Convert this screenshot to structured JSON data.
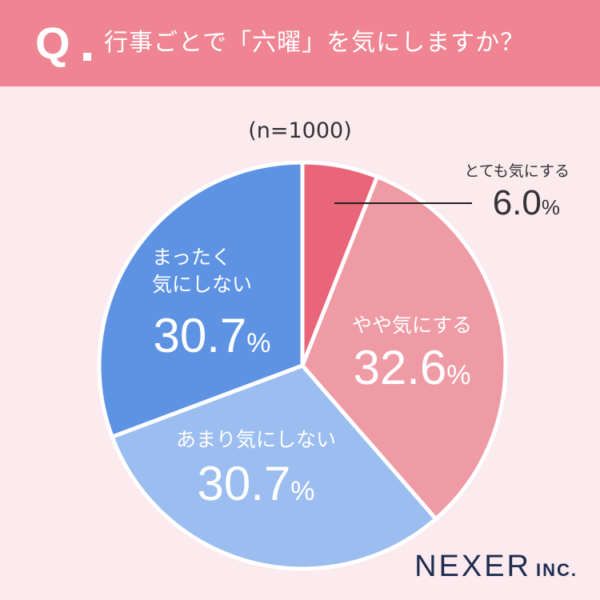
{
  "header": {
    "q_mark": "Q",
    "question": "行事ごとで「六曜」を気にしますか？"
  },
  "chart_data": {
    "type": "pie",
    "sample_note": "(n=1000)",
    "categories": [
      "とても気にする",
      "やや気にする",
      "あまり気にしない",
      "まったく気にしない"
    ],
    "values": [
      6.0,
      32.6,
      30.7,
      30.7
    ],
    "value_texts": [
      "6.0",
      "32.6",
      "30.7",
      "30.7"
    ],
    "unit": "%",
    "colors": [
      "#e9657a",
      "#ef9ba6",
      "#9bbdf0",
      "#5e93e4"
    ]
  },
  "logo": {
    "main": "NEXER",
    "sub": "INC."
  }
}
